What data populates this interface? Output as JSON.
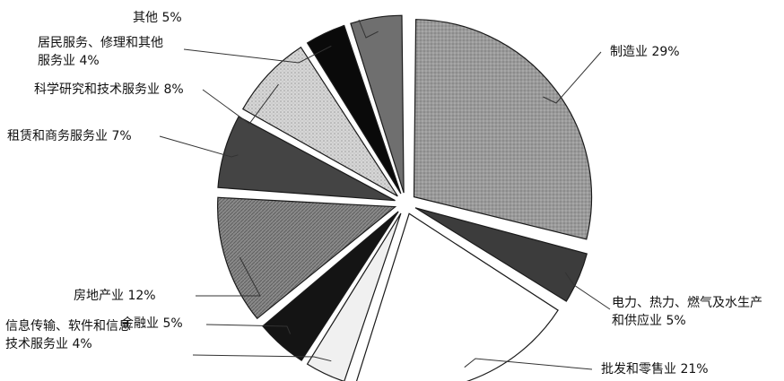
{
  "chart_data": {
    "type": "pie",
    "title": "",
    "slices": [
      {
        "label": "制造业",
        "label_lines": [
          "制造业 29%"
        ],
        "value": 29,
        "pct_text": "29%",
        "color": "#9a9a9a",
        "pattern": "dots"
      },
      {
        "label": "电力、热力、燃气及水生产和供应业",
        "label_lines": [
          "电力、热力、燃气及水生产",
          "和供应业 5%"
        ],
        "value": 5,
        "pct_text": "5%",
        "color": "#3c3c3c"
      },
      {
        "label": "批发和零售业",
        "label_lines": [
          "批发和零售业 21%"
        ],
        "value": 21,
        "pct_text": "21%",
        "color": "#ffffff"
      },
      {
        "label": "信息传输、软件和信息技术服务业",
        "label_lines": [
          "信息传输、软件和信息",
          "技术服务业 4%"
        ],
        "value": 4,
        "pct_text": "4%",
        "color": "#f0f0f0"
      },
      {
        "label": "金融业",
        "label_lines": [
          "金融业 5%"
        ],
        "value": 5,
        "pct_text": "5%",
        "color": "#141414"
      },
      {
        "label": "房地产业",
        "label_lines": [
          "房地产业 12%"
        ],
        "value": 12,
        "pct_text": "12%",
        "color": "#8d8d8d",
        "pattern": "hatch"
      },
      {
        "label": "租赁和商务服务业",
        "label_lines": [
          "租赁和商务服务业 7%"
        ],
        "value": 7,
        "pct_text": "7%",
        "color": "#444444"
      },
      {
        "label": "科学研究和技术服务业",
        "label_lines": [
          "科学研究和技术服务业 8%"
        ],
        "value": 8,
        "pct_text": "8%",
        "color": "#cfcfcf",
        "pattern": "dots-light"
      },
      {
        "label": "居民服务、修理和其他服务业",
        "label_lines": [
          "居民服务、修理和其他",
          "服务业 4%"
        ],
        "value": 4,
        "pct_text": "4%",
        "color": "#0a0a0a"
      },
      {
        "label": "其他",
        "label_lines": [
          "其他 5%"
        ],
        "value": 5,
        "pct_text": "5%",
        "color": "#6f6f6f"
      }
    ]
  }
}
